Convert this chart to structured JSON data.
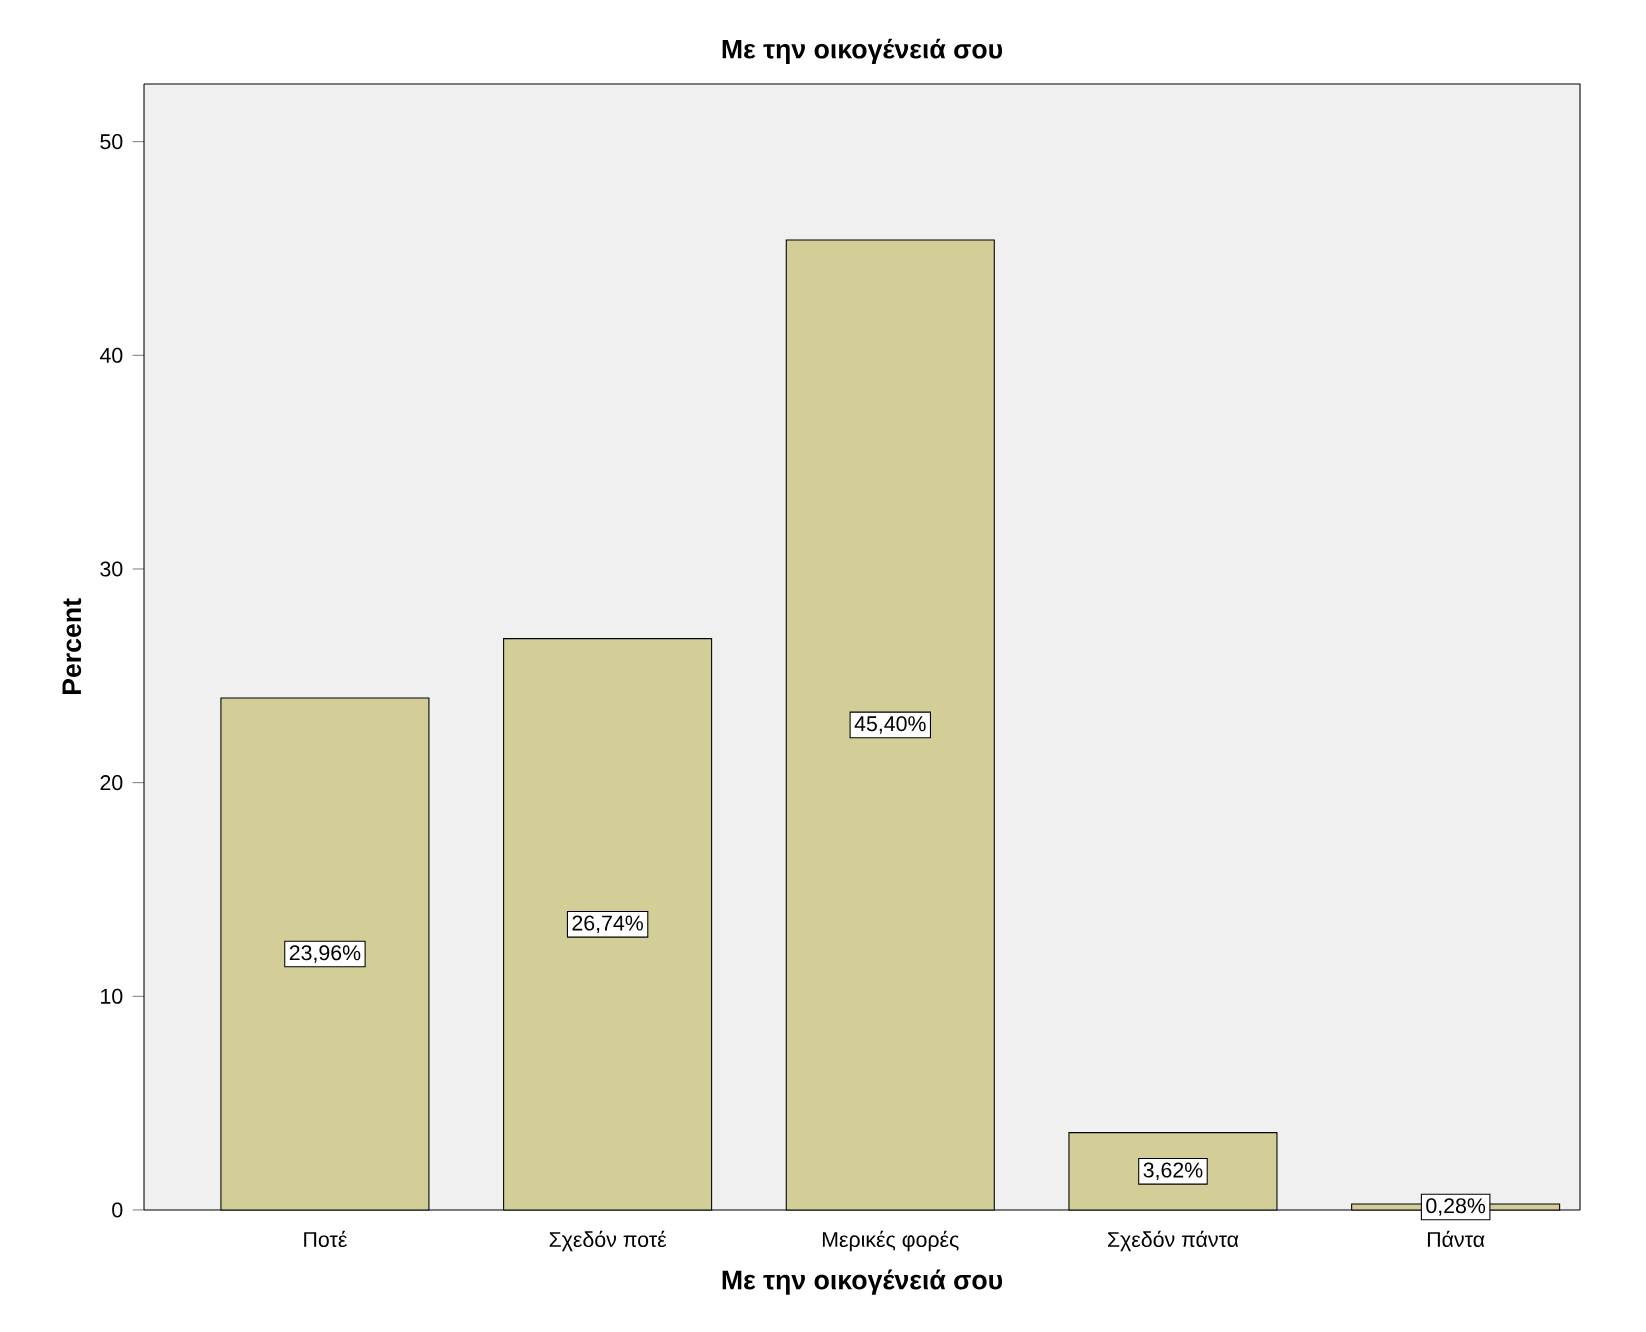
{
  "chart_data": {
    "type": "bar",
    "title": "Με την οικογένειά σου",
    "xlabel": "Με την οικογένειά σου",
    "ylabel": "Percent",
    "categories": [
      "Ποτέ",
      "Σχεδόν ποτέ",
      "Μερικές φορές",
      "Σχεδόν πάντα",
      "Πάντα"
    ],
    "values": [
      23.96,
      26.74,
      45.4,
      3.62,
      0.28
    ],
    "value_labels": [
      "23,96%",
      "26,74%",
      "45,40%",
      "3,62%",
      "0,28%"
    ],
    "color": "#d3ce97",
    "ylim": [
      0,
      52.7
    ],
    "yticks": [
      0,
      10,
      20,
      30,
      40,
      50
    ],
    "grid": false
  }
}
